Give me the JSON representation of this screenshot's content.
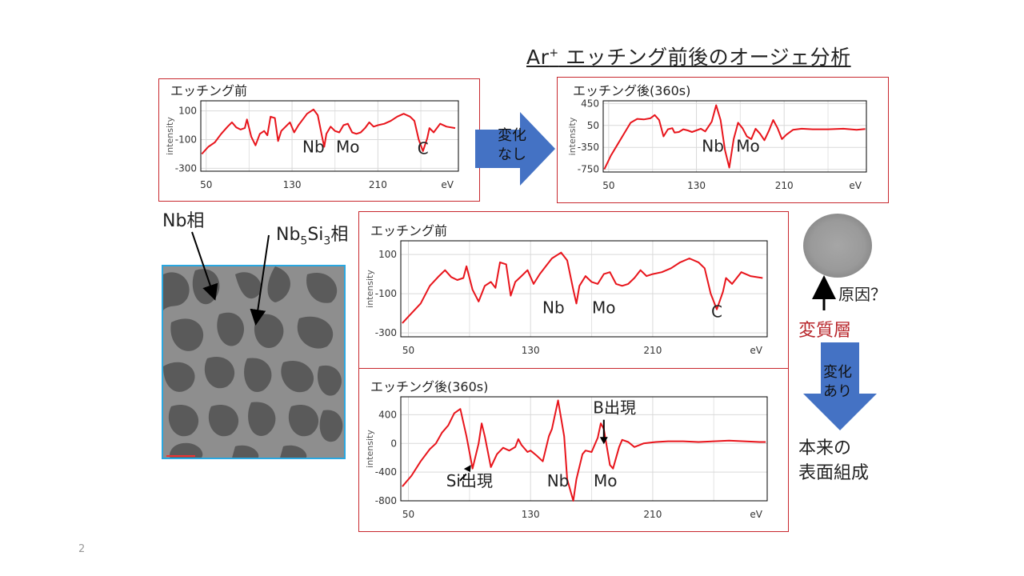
{
  "title": {
    "main": "Ar",
    "sup": "+",
    "rest": " エッチング前後のオージェ分析"
  },
  "page_number": "2",
  "labels": {
    "nb_phase": "Nb相",
    "nb5si3_phase": {
      "a": "Nb",
      "b": "5",
      "c": "Si",
      "d": "3",
      "e": "相"
    },
    "change_none": [
      "変化",
      "なし"
    ],
    "change_yes": [
      "変化",
      "あり"
    ],
    "cause": "原因？",
    "altered_layer": "変質層",
    "original_surface": [
      "本来の",
      "表面組成"
    ],
    "arrow_color": "#4472c4"
  },
  "chart_data": [
    {
      "id": "small-before",
      "type": "line",
      "title": "エッチング前",
      "ylabel": "intensity",
      "xlabel": "eV",
      "x_ticks": [
        50,
        130,
        210
      ],
      "y_ticks": [
        100,
        -100,
        -300
      ],
      "y_tick_labels": [
        "100",
        "-100",
        "-300"
      ],
      "xlim": [
        45,
        285
      ],
      "ylim": [
        -320,
        170
      ],
      "color": "#e8141b",
      "annotations": [
        {
          "text": "Nb",
          "x": 150,
          "y": -190
        },
        {
          "text": "Mo",
          "x": 182,
          "y": -190
        },
        {
          "text": "C",
          "x": 252,
          "y": -200
        }
      ],
      "points": [
        [
          46,
          -200
        ],
        [
          52,
          -150
        ],
        [
          58,
          -120
        ],
        [
          64,
          -60
        ],
        [
          70,
          -10
        ],
        [
          74,
          20
        ],
        [
          78,
          -15
        ],
        [
          82,
          -30
        ],
        [
          86,
          -20
        ],
        [
          88,
          40
        ],
        [
          92,
          -80
        ],
        [
          96,
          -140
        ],
        [
          100,
          -60
        ],
        [
          104,
          -40
        ],
        [
          107,
          -70
        ],
        [
          110,
          60
        ],
        [
          114,
          50
        ],
        [
          117,
          -110
        ],
        [
          120,
          -40
        ],
        [
          124,
          -10
        ],
        [
          128,
          20
        ],
        [
          132,
          -50
        ],
        [
          136,
          0
        ],
        [
          140,
          40
        ],
        [
          144,
          80
        ],
        [
          150,
          110
        ],
        [
          154,
          70
        ],
        [
          158,
          -80
        ],
        [
          160,
          -150
        ],
        [
          162,
          -60
        ],
        [
          166,
          -10
        ],
        [
          170,
          -40
        ],
        [
          174,
          -50
        ],
        [
          178,
          0
        ],
        [
          182,
          10
        ],
        [
          186,
          -50
        ],
        [
          190,
          -60
        ],
        [
          194,
          -50
        ],
        [
          198,
          -20
        ],
        [
          202,
          20
        ],
        [
          206,
          -10
        ],
        [
          210,
          0
        ],
        [
          216,
          10
        ],
        [
          222,
          30
        ],
        [
          228,
          60
        ],
        [
          234,
          80
        ],
        [
          240,
          60
        ],
        [
          244,
          30
        ],
        [
          248,
          -100
        ],
        [
          252,
          -180
        ],
        [
          256,
          -90
        ],
        [
          258,
          -20
        ],
        [
          262,
          -50
        ],
        [
          268,
          10
        ],
        [
          274,
          -10
        ],
        [
          282,
          -20
        ]
      ]
    },
    {
      "id": "small-after",
      "type": "line",
      "title": "エッチング後(360s)",
      "ylabel": "intensity",
      "xlabel": "eV",
      "x_ticks": [
        50,
        130,
        210
      ],
      "y_ticks": [
        450,
        50,
        -350,
        -750
      ],
      "y_tick_labels": [
        "450",
        "50",
        "-350",
        "-750"
      ],
      "xlim": [
        45,
        285
      ],
      "ylim": [
        -800,
        500
      ],
      "color": "#e8141b",
      "annotations": [
        {
          "text": "Nb",
          "x": 145,
          "y": -430
        },
        {
          "text": "Mo",
          "x": 177,
          "y": -430
        }
      ],
      "points": [
        [
          46,
          -750
        ],
        [
          52,
          -500
        ],
        [
          58,
          -300
        ],
        [
          64,
          -100
        ],
        [
          70,
          100
        ],
        [
          76,
          170
        ],
        [
          82,
          160
        ],
        [
          88,
          180
        ],
        [
          92,
          240
        ],
        [
          96,
          150
        ],
        [
          100,
          -150
        ],
        [
          104,
          -20
        ],
        [
          108,
          0
        ],
        [
          110,
          -80
        ],
        [
          114,
          -70
        ],
        [
          118,
          -20
        ],
        [
          122,
          -40
        ],
        [
          126,
          -70
        ],
        [
          130,
          -40
        ],
        [
          134,
          -10
        ],
        [
          138,
          -60
        ],
        [
          144,
          120
        ],
        [
          148,
          420
        ],
        [
          152,
          150
        ],
        [
          156,
          -400
        ],
        [
          160,
          -720
        ],
        [
          164,
          -200
        ],
        [
          168,
          100
        ],
        [
          172,
          0
        ],
        [
          176,
          -150
        ],
        [
          180,
          -200
        ],
        [
          184,
          -10
        ],
        [
          188,
          -100
        ],
        [
          192,
          -220
        ],
        [
          196,
          -50
        ],
        [
          200,
          150
        ],
        [
          204,
          0
        ],
        [
          208,
          -200
        ],
        [
          212,
          -120
        ],
        [
          218,
          -30
        ],
        [
          226,
          -10
        ],
        [
          236,
          -20
        ],
        [
          250,
          -20
        ],
        [
          264,
          -10
        ],
        [
          276,
          -30
        ],
        [
          284,
          -15
        ]
      ]
    },
    {
      "id": "large-before",
      "type": "line",
      "title": "エッチング前",
      "ylabel": "intensity",
      "xlabel": "eV",
      "x_ticks": [
        50,
        130,
        210
      ],
      "y_ticks": [
        100,
        -100,
        -300
      ],
      "y_tick_labels": [
        "100",
        "-100",
        "-300"
      ],
      "xlim": [
        45,
        285
      ],
      "ylim": [
        -320,
        170
      ],
      "color": "#e8141b",
      "annotations": [
        {
          "text": "Nb",
          "x": 145,
          "y": -200
        },
        {
          "text": "Mo",
          "x": 178,
          "y": -200
        },
        {
          "text": "C",
          "x": 252,
          "y": -220
        }
      ],
      "points": [
        [
          46,
          -250
        ],
        [
          52,
          -200
        ],
        [
          58,
          -150
        ],
        [
          64,
          -60
        ],
        [
          70,
          -10
        ],
        [
          74,
          20
        ],
        [
          78,
          -15
        ],
        [
          82,
          -30
        ],
        [
          86,
          -20
        ],
        [
          88,
          40
        ],
        [
          92,
          -80
        ],
        [
          96,
          -140
        ],
        [
          100,
          -60
        ],
        [
          104,
          -40
        ],
        [
          107,
          -70
        ],
        [
          110,
          60
        ],
        [
          114,
          50
        ],
        [
          117,
          -110
        ],
        [
          120,
          -40
        ],
        [
          124,
          -10
        ],
        [
          128,
          20
        ],
        [
          132,
          -50
        ],
        [
          136,
          0
        ],
        [
          140,
          40
        ],
        [
          144,
          80
        ],
        [
          150,
          110
        ],
        [
          154,
          70
        ],
        [
          158,
          -80
        ],
        [
          160,
          -150
        ],
        [
          162,
          -60
        ],
        [
          166,
          -10
        ],
        [
          170,
          -40
        ],
        [
          174,
          -50
        ],
        [
          178,
          0
        ],
        [
          182,
          10
        ],
        [
          186,
          -50
        ],
        [
          190,
          -60
        ],
        [
          194,
          -50
        ],
        [
          198,
          -20
        ],
        [
          202,
          20
        ],
        [
          206,
          -10
        ],
        [
          210,
          0
        ],
        [
          216,
          10
        ],
        [
          222,
          30
        ],
        [
          228,
          60
        ],
        [
          234,
          80
        ],
        [
          240,
          60
        ],
        [
          244,
          30
        ],
        [
          248,
          -100
        ],
        [
          252,
          -180
        ],
        [
          256,
          -90
        ],
        [
          258,
          -20
        ],
        [
          262,
          -50
        ],
        [
          268,
          10
        ],
        [
          274,
          -10
        ],
        [
          282,
          -20
        ]
      ]
    },
    {
      "id": "large-after",
      "type": "line",
      "title": "エッチング後(360s)",
      "ylabel": "intensity",
      "xlabel": "eV",
      "x_ticks": [
        50,
        130,
        210
      ],
      "y_ticks": [
        400,
        0,
        -400,
        -800
      ],
      "y_tick_labels": [
        "400",
        "0",
        "-400",
        "-800"
      ],
      "xlim": [
        45,
        285
      ],
      "ylim": [
        -800,
        650
      ],
      "color": "#e8141b",
      "annotations": [
        {
          "text": "Si出現",
          "x": 90,
          "y": -600
        },
        {
          "text": "Nb",
          "x": 148,
          "y": -600
        },
        {
          "text": "Mo",
          "x": 179,
          "y": -600
        },
        {
          "text": "B出現",
          "x": 185,
          "y": 420
        }
      ],
      "points": [
        [
          46,
          -600
        ],
        [
          52,
          -450
        ],
        [
          58,
          -250
        ],
        [
          64,
          -80
        ],
        [
          68,
          0
        ],
        [
          72,
          150
        ],
        [
          76,
          250
        ],
        [
          80,
          420
        ],
        [
          84,
          480
        ],
        [
          88,
          100
        ],
        [
          92,
          -350
        ],
        [
          96,
          0
        ],
        [
          98,
          280
        ],
        [
          100,
          100
        ],
        [
          104,
          -330
        ],
        [
          108,
          -150
        ],
        [
          112,
          -60
        ],
        [
          116,
          -100
        ],
        [
          120,
          -50
        ],
        [
          122,
          60
        ],
        [
          124,
          -20
        ],
        [
          128,
          -120
        ],
        [
          130,
          -100
        ],
        [
          134,
          -170
        ],
        [
          138,
          -250
        ],
        [
          142,
          100
        ],
        [
          144,
          200
        ],
        [
          148,
          600
        ],
        [
          152,
          100
        ],
        [
          154,
          -500
        ],
        [
          158,
          -800
        ],
        [
          160,
          -500
        ],
        [
          164,
          -150
        ],
        [
          166,
          -100
        ],
        [
          170,
          -120
        ],
        [
          174,
          80
        ],
        [
          176,
          280
        ],
        [
          178,
          200
        ],
        [
          182,
          -300
        ],
        [
          184,
          -350
        ],
        [
          188,
          -50
        ],
        [
          190,
          50
        ],
        [
          194,
          20
        ],
        [
          198,
          -50
        ],
        [
          204,
          0
        ],
        [
          212,
          20
        ],
        [
          220,
          30
        ],
        [
          230,
          30
        ],
        [
          240,
          20
        ],
        [
          250,
          30
        ],
        [
          260,
          40
        ],
        [
          270,
          30
        ],
        [
          280,
          20
        ],
        [
          284,
          20
        ]
      ]
    }
  ]
}
